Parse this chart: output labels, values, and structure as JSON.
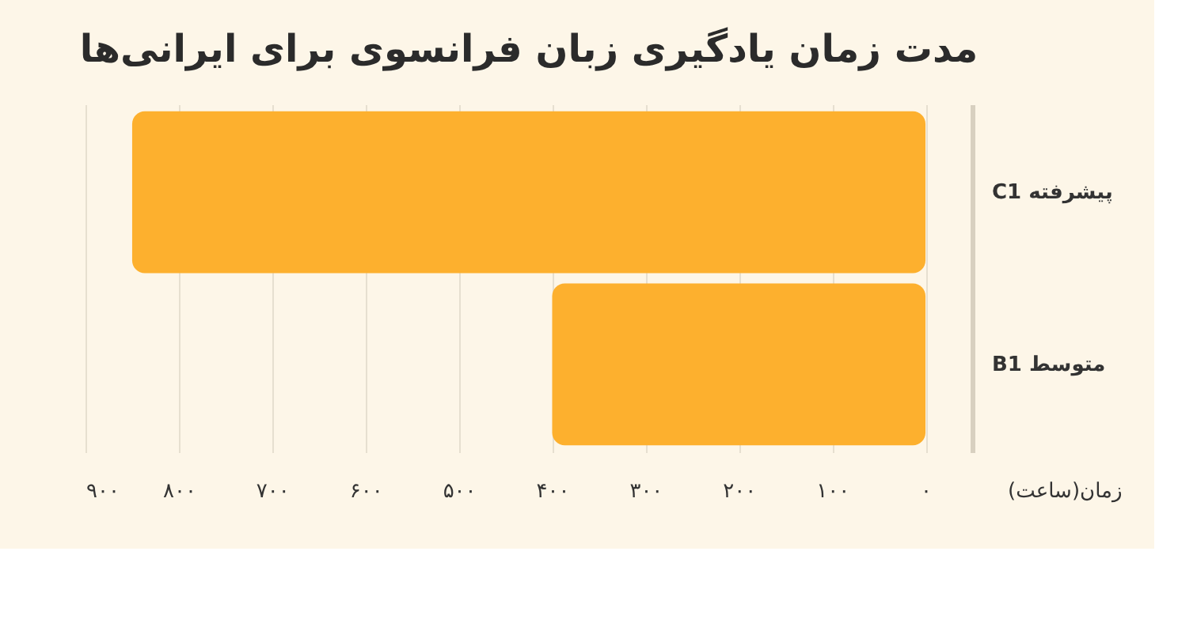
{
  "chart_data": {
    "type": "bar",
    "orientation": "horizontal",
    "title": "مدت زمان یادگیری زبان فرانسوی برای ایرانی‌ها",
    "xlabel": "زمان(ساعت)",
    "categories": [
      "C1 پیشرفته",
      "B1 متوسط"
    ],
    "values": [
      850,
      400
    ],
    "color": "#fdb02e",
    "xlim": [
      900,
      -50
    ],
    "xticks": [
      {
        "value": 900,
        "label": "۹۰۰"
      },
      {
        "value": 800,
        "label": "۸۰۰"
      },
      {
        "value": 700,
        "label": "۷۰۰"
      },
      {
        "value": 600,
        "label": "۶۰۰"
      },
      {
        "value": 500,
        "label": "۵۰۰"
      },
      {
        "value": 400,
        "label": "۴۰۰"
      },
      {
        "value": 300,
        "label": "۳۰۰"
      },
      {
        "value": 200,
        "label": "۲۰۰"
      },
      {
        "value": 100,
        "label": "۱۰۰"
      },
      {
        "value": 0,
        "label": "۰"
      }
    ],
    "grid": "x"
  }
}
